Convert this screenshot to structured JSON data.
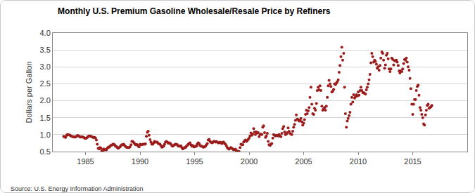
{
  "chart_data": {
    "type": "scatter",
    "title": "Monthly U.S. Premium Gasoline Wholesale/Resale Price by Refiners",
    "y_label": "Dollars per Gallon",
    "annotations": [
      {
        "text": "Source: U.S. Energy Information Administration"
      }
    ],
    "marker": "circle",
    "grid": true,
    "xlim": [
      1982,
      2020
    ],
    "xticks": [
      1985,
      1990,
      1995,
      2000,
      2005,
      2010,
      2015
    ],
    "ylim": [
      0.5,
      4.0
    ],
    "yticks": [
      0.5,
      {
        "value": 1.0,
        "label": "1.0"
      },
      1.5,
      {
        "value": 2.0,
        "label": "2.0"
      },
      2.5,
      {
        "value": 3.0,
        "label": "3.0"
      },
      3.5,
      {
        "value": 4.0,
        "label": "4.0"
      }
    ],
    "series": [
      {
        "name": "Premium Gasoline Wholesale/Resale Price by Refiners",
        "color": "#9c1c1c",
        "x": [
          1983.0,
          1983.08,
          1983.17,
          1983.25,
          1983.33,
          1983.42,
          1983.5,
          1983.58,
          1983.67,
          1983.75,
          1983.83,
          1983.92,
          1984.0,
          1984.08,
          1984.17,
          1984.25,
          1984.33,
          1984.42,
          1984.5,
          1984.58,
          1984.67,
          1984.75,
          1984.83,
          1984.92,
          1985.0,
          1985.08,
          1985.17,
          1985.25,
          1985.33,
          1985.42,
          1985.5,
          1985.58,
          1985.67,
          1985.75,
          1985.83,
          1985.92,
          1986.0,
          1986.08,
          1986.17,
          1986.25,
          1986.33,
          1986.42,
          1986.5,
          1986.58,
          1986.67,
          1986.75,
          1986.83,
          1986.92,
          1987.0,
          1987.08,
          1987.17,
          1987.25,
          1987.33,
          1987.42,
          1987.5,
          1987.58,
          1987.67,
          1987.75,
          1987.83,
          1987.92,
          1988.0,
          1988.08,
          1988.17,
          1988.25,
          1988.33,
          1988.42,
          1988.5,
          1988.58,
          1988.67,
          1988.75,
          1988.83,
          1988.92,
          1989.0,
          1989.08,
          1989.17,
          1989.25,
          1989.33,
          1989.42,
          1989.5,
          1989.58,
          1989.67,
          1989.75,
          1989.83,
          1989.92,
          1990.0,
          1990.08,
          1990.17,
          1990.25,
          1990.33,
          1990.42,
          1990.5,
          1990.58,
          1990.67,
          1990.75,
          1990.83,
          1990.92,
          1991.0,
          1991.08,
          1991.17,
          1991.25,
          1991.33,
          1991.42,
          1991.5,
          1991.58,
          1991.67,
          1991.75,
          1991.83,
          1991.92,
          1992.0,
          1992.08,
          1992.17,
          1992.25,
          1992.33,
          1992.42,
          1992.5,
          1992.58,
          1992.67,
          1992.75,
          1992.83,
          1992.92,
          1993.0,
          1993.08,
          1993.17,
          1993.25,
          1993.33,
          1993.42,
          1993.5,
          1993.58,
          1993.67,
          1993.75,
          1993.83,
          1993.92,
          1994.0,
          1994.08,
          1994.17,
          1994.25,
          1994.33,
          1994.42,
          1994.5,
          1994.58,
          1994.67,
          1994.75,
          1994.83,
          1994.92,
          1995.0,
          1995.08,
          1995.17,
          1995.25,
          1995.33,
          1995.42,
          1995.5,
          1995.58,
          1995.67,
          1995.75,
          1995.83,
          1995.92,
          1996.0,
          1996.08,
          1996.17,
          1996.25,
          1996.33,
          1996.42,
          1996.5,
          1996.58,
          1996.67,
          1996.75,
          1996.83,
          1996.92,
          1997.0,
          1997.08,
          1997.17,
          1997.25,
          1997.33,
          1997.42,
          1997.5,
          1997.58,
          1997.67,
          1997.75,
          1997.83,
          1997.92,
          1998.0,
          1998.08,
          1998.17,
          1998.25,
          1998.33,
          1998.42,
          1998.5,
          1998.58,
          1998.67,
          1998.75,
          1998.83,
          1998.92,
          1999.0,
          1999.08,
          1999.17,
          1999.25,
          1999.33,
          1999.42,
          1999.5,
          1999.58,
          1999.67,
          1999.75,
          1999.83,
          1999.92,
          2000.0,
          2000.08,
          2000.17,
          2000.25,
          2000.33,
          2000.42,
          2000.5,
          2000.58,
          2000.67,
          2000.75,
          2000.83,
          2000.92,
          2001.0,
          2001.08,
          2001.17,
          2001.25,
          2001.33,
          2001.42,
          2001.5,
          2001.58,
          2001.67,
          2001.75,
          2001.83,
          2001.92,
          2002.0,
          2002.08,
          2002.17,
          2002.25,
          2002.33,
          2002.42,
          2002.5,
          2002.58,
          2002.67,
          2002.75,
          2002.83,
          2002.92,
          2003.0,
          2003.08,
          2003.17,
          2003.25,
          2003.33,
          2003.42,
          2003.5,
          2003.58,
          2003.67,
          2003.75,
          2003.83,
          2003.92,
          2004.0,
          2004.08,
          2004.17,
          2004.25,
          2004.33,
          2004.42,
          2004.5,
          2004.58,
          2004.67,
          2004.75,
          2004.83,
          2004.92,
          2005.0,
          2005.08,
          2005.17,
          2005.25,
          2005.33,
          2005.42,
          2005.5,
          2005.58,
          2005.67,
          2005.75,
          2005.83,
          2005.92,
          2006.0,
          2006.08,
          2006.17,
          2006.25,
          2006.33,
          2006.42,
          2006.5,
          2006.58,
          2006.67,
          2006.75,
          2006.83,
          2006.92,
          2007.0,
          2007.08,
          2007.17,
          2007.25,
          2007.33,
          2007.42,
          2007.5,
          2007.58,
          2007.67,
          2007.75,
          2007.83,
          2007.92,
          2008.0,
          2008.08,
          2008.17,
          2008.25,
          2008.33,
          2008.42,
          2008.5,
          2008.58,
          2008.67,
          2008.75,
          2008.83,
          2008.92,
          2009.0,
          2009.08,
          2009.17,
          2009.25,
          2009.33,
          2009.42,
          2009.5,
          2009.58,
          2009.67,
          2009.75,
          2009.83,
          2009.92,
          2010.0,
          2010.08,
          2010.17,
          2010.25,
          2010.33,
          2010.42,
          2010.5,
          2010.58,
          2010.67,
          2010.75,
          2010.83,
          2010.92,
          2011.0,
          2011.08,
          2011.17,
          2011.25,
          2011.33,
          2011.42,
          2011.5,
          2011.58,
          2011.67,
          2011.75,
          2011.83,
          2011.92,
          2012.0,
          2012.08,
          2012.17,
          2012.25,
          2012.33,
          2012.42,
          2012.5,
          2012.58,
          2012.67,
          2012.75,
          2012.83,
          2012.92,
          2013.0,
          2013.08,
          2013.17,
          2013.25,
          2013.33,
          2013.42,
          2013.5,
          2013.58,
          2013.67,
          2013.75,
          2013.83,
          2013.92,
          2014.0,
          2014.08,
          2014.17,
          2014.25,
          2014.33,
          2014.42,
          2014.5,
          2014.58,
          2014.67,
          2014.75,
          2014.83,
          2014.92,
          2015.0,
          2015.08,
          2015.17,
          2015.25,
          2015.33,
          2015.42,
          2015.5,
          2015.58,
          2015.67,
          2015.75,
          2015.83,
          2015.92,
          2016.0,
          2016.08,
          2016.17,
          2016.25,
          2016.33,
          2016.42,
          2016.5,
          2016.58,
          2016.67,
          2016.75
        ],
        "values": [
          0.95,
          0.93,
          0.92,
          0.97,
          1.0,
          1.0,
          0.99,
          0.98,
          0.96,
          0.95,
          0.94,
          0.93,
          0.93,
          0.93,
          0.95,
          0.97,
          0.97,
          0.95,
          0.93,
          0.93,
          0.94,
          0.93,
          0.92,
          0.9,
          0.89,
          0.9,
          0.92,
          0.95,
          0.96,
          0.96,
          0.95,
          0.94,
          0.92,
          0.92,
          0.92,
          0.9,
          0.84,
          0.72,
          0.6,
          0.58,
          0.62,
          0.6,
          0.52,
          0.53,
          0.58,
          0.55,
          0.56,
          0.55,
          0.6,
          0.63,
          0.63,
          0.66,
          0.68,
          0.69,
          0.72,
          0.72,
          0.7,
          0.66,
          0.65,
          0.62,
          0.6,
          0.62,
          0.64,
          0.68,
          0.7,
          0.7,
          0.72,
          0.68,
          0.65,
          0.63,
          0.62,
          0.62,
          0.62,
          0.64,
          0.7,
          0.8,
          0.8,
          0.77,
          0.74,
          0.7,
          0.71,
          0.7,
          0.66,
          0.64,
          0.72,
          0.7,
          0.7,
          0.72,
          0.72,
          0.72,
          0.73,
          0.95,
          1.07,
          1.1,
          0.98,
          0.85,
          0.78,
          0.72,
          0.72,
          0.76,
          0.8,
          0.78,
          0.78,
          0.78,
          0.74,
          0.73,
          0.72,
          0.68,
          0.63,
          0.64,
          0.66,
          0.72,
          0.78,
          0.8,
          0.78,
          0.75,
          0.76,
          0.75,
          0.72,
          0.67,
          0.66,
          0.68,
          0.7,
          0.72,
          0.72,
          0.7,
          0.66,
          0.66,
          0.66,
          0.67,
          0.62,
          0.58,
          0.6,
          0.62,
          0.62,
          0.66,
          0.68,
          0.72,
          0.74,
          0.76,
          0.7,
          0.66,
          0.68,
          0.64,
          0.64,
          0.66,
          0.66,
          0.72,
          0.76,
          0.74,
          0.68,
          0.66,
          0.66,
          0.64,
          0.63,
          0.64,
          0.66,
          0.7,
          0.74,
          0.84,
          0.86,
          0.8,
          0.78,
          0.76,
          0.77,
          0.8,
          0.8,
          0.78,
          0.8,
          0.78,
          0.76,
          0.76,
          0.78,
          0.76,
          0.74,
          0.78,
          0.78,
          0.74,
          0.72,
          0.67,
          0.62,
          0.59,
          0.57,
          0.6,
          0.62,
          0.6,
          0.58,
          0.55,
          0.56,
          0.57,
          0.53,
          0.5,
          0.51,
          0.5,
          0.62,
          0.72,
          0.7,
          0.7,
          0.78,
          0.82,
          0.84,
          0.8,
          0.82,
          0.86,
          0.9,
          0.96,
          1.05,
          0.98,
          1.02,
          1.18,
          1.08,
          1.0,
          1.08,
          1.05,
          1.06,
          0.94,
          1.0,
          1.02,
          1.0,
          1.22,
          1.26,
          1.06,
          0.92,
          0.96,
          1.04,
          0.8,
          0.7,
          0.68,
          0.72,
          0.74,
          0.9,
          1.0,
          0.98,
          0.96,
          0.98,
          0.98,
          0.96,
          1.0,
          0.96,
          0.94,
          1.04,
          1.18,
          1.24,
          1.08,
          1.0,
          1.02,
          1.06,
          1.2,
          1.1,
          1.04,
          1.02,
          1.0,
          1.1,
          1.22,
          1.3,
          1.42,
          1.58,
          1.46,
          1.44,
          1.4,
          1.42,
          1.48,
          1.38,
          1.28,
          1.34,
          1.44,
          1.6,
          1.72,
          1.62,
          1.7,
          1.8,
          2.1,
          2.4,
          1.9,
          1.62,
          1.6,
          1.78,
          1.72,
          1.92,
          2.3,
          2.4,
          2.32,
          2.44,
          2.3,
          1.84,
          1.72,
          1.76,
          1.8,
          1.72,
          1.84,
          2.1,
          2.44,
          2.6,
          2.5,
          2.42,
          2.26,
          2.28,
          2.34,
          2.5,
          2.48,
          2.52,
          2.56,
          2.62,
          2.84,
          3.04,
          3.3,
          3.58,
          3.2,
          3.4,
          2.4,
          1.62,
          1.22,
          1.4,
          1.48,
          1.56,
          1.66,
          1.9,
          2.1,
          1.96,
          2.18,
          2.08,
          2.12,
          2.18,
          2.14,
          2.26,
          2.16,
          2.3,
          2.4,
          2.3,
          2.24,
          2.24,
          2.22,
          2.2,
          2.32,
          2.4,
          2.5,
          2.62,
          2.78,
          3.12,
          3.4,
          3.3,
          3.14,
          3.2,
          3.16,
          3.08,
          2.96,
          3.0,
          2.9,
          3.04,
          3.26,
          3.44,
          3.4,
          3.2,
          2.96,
          3.06,
          3.34,
          3.4,
          3.24,
          2.94,
          2.86,
          2.94,
          3.26,
          3.22,
          3.06,
          3.18,
          3.18,
          3.2,
          3.14,
          3.04,
          2.88,
          2.82,
          2.88,
          2.86,
          2.94,
          3.1,
          3.22,
          3.2,
          3.26,
          3.14,
          3.0,
          2.9,
          2.66,
          2.36,
          1.9,
          1.6,
          1.9,
          2.04,
          2.04,
          2.3,
          2.42,
          2.46,
          2.16,
          1.8,
          1.72,
          1.6,
          1.5,
          1.32,
          1.28,
          1.58,
          1.72,
          1.86,
          1.9,
          1.78,
          1.8,
          1.82,
          1.86
        ]
      }
    ]
  }
}
